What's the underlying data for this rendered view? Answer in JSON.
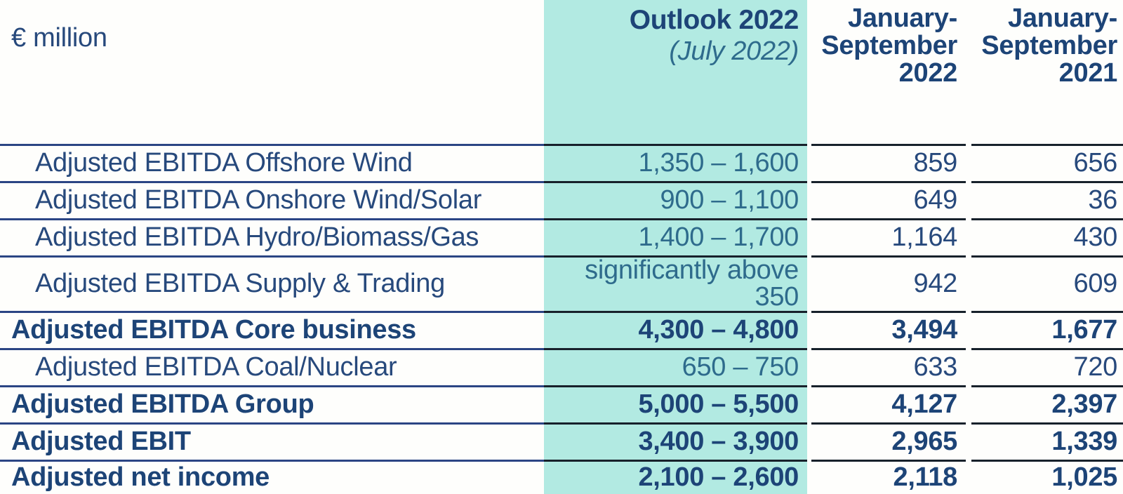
{
  "header": {
    "unit_label": "€ million",
    "outlook_title": "Outlook 2022",
    "outlook_subtitle": "(July 2022)",
    "col_2022": "January-\nSeptember\n2022",
    "col_2021": "January-\nSeptember\n2021"
  },
  "rows": [
    {
      "label": "Adjusted EBITDA Offshore Wind",
      "outlook": "1,350 – 1,600",
      "ytd2022": "859",
      "ytd2021": "656"
    },
    {
      "label": "Adjusted EBITDA Onshore Wind/Solar",
      "outlook": "900 – 1,100",
      "ytd2022": "649",
      "ytd2021": "36"
    },
    {
      "label": "Adjusted EBITDA Hydro/Biomass/Gas",
      "outlook": "1,400 – 1,700",
      "ytd2022": "1,164",
      "ytd2021": "430"
    },
    {
      "label": "Adjusted EBITDA Supply & Trading",
      "outlook": "significantly above 350",
      "ytd2022": "942",
      "ytd2021": "609"
    },
    {
      "label": "Adjusted EBITDA Core business",
      "outlook": "4,300 – 4,800",
      "ytd2022": "3,494",
      "ytd2021": "1,677"
    },
    {
      "label": "Adjusted EBITDA Coal/Nuclear",
      "outlook": "650 – 750",
      "ytd2022": "633",
      "ytd2021": "720"
    },
    {
      "label": "Adjusted EBITDA Group",
      "outlook": "5,000 – 5,500",
      "ytd2022": "4,127",
      "ytd2021": "2,397"
    },
    {
      "label": "Adjusted EBIT",
      "outlook": "3,400 – 3,900",
      "ytd2022": "2,965",
      "ytd2021": "1,339"
    },
    {
      "label": "Adjusted net income",
      "outlook": "2,100 – 2,600",
      "ytd2022": "2,118",
      "ytd2021": "1,025"
    }
  ],
  "colors": {
    "highlight_column_background": "#b2eae2",
    "navy_text": "#1d4477",
    "regular_text": "#27497c",
    "outlook_value_text": "#2e6b8c",
    "rule_label_column": "#2b4584",
    "rule_data_columns": "#17212b",
    "page_background": "#fefefc"
  }
}
